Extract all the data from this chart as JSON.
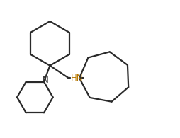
{
  "background_color": "#ffffff",
  "line_color": "#2a2a2a",
  "N_color": "#2a2a2a",
  "HN_color": "#b87800",
  "line_width": 1.6,
  "fig_width": 2.54,
  "fig_height": 1.95,
  "dpi": 100,
  "label_N": "N",
  "label_HN": "HN",
  "label_N_fontsize": 8.5,
  "label_HN_fontsize": 8.5,
  "xlim": [
    0,
    10.5
  ],
  "ylim": [
    0,
    8.1
  ]
}
